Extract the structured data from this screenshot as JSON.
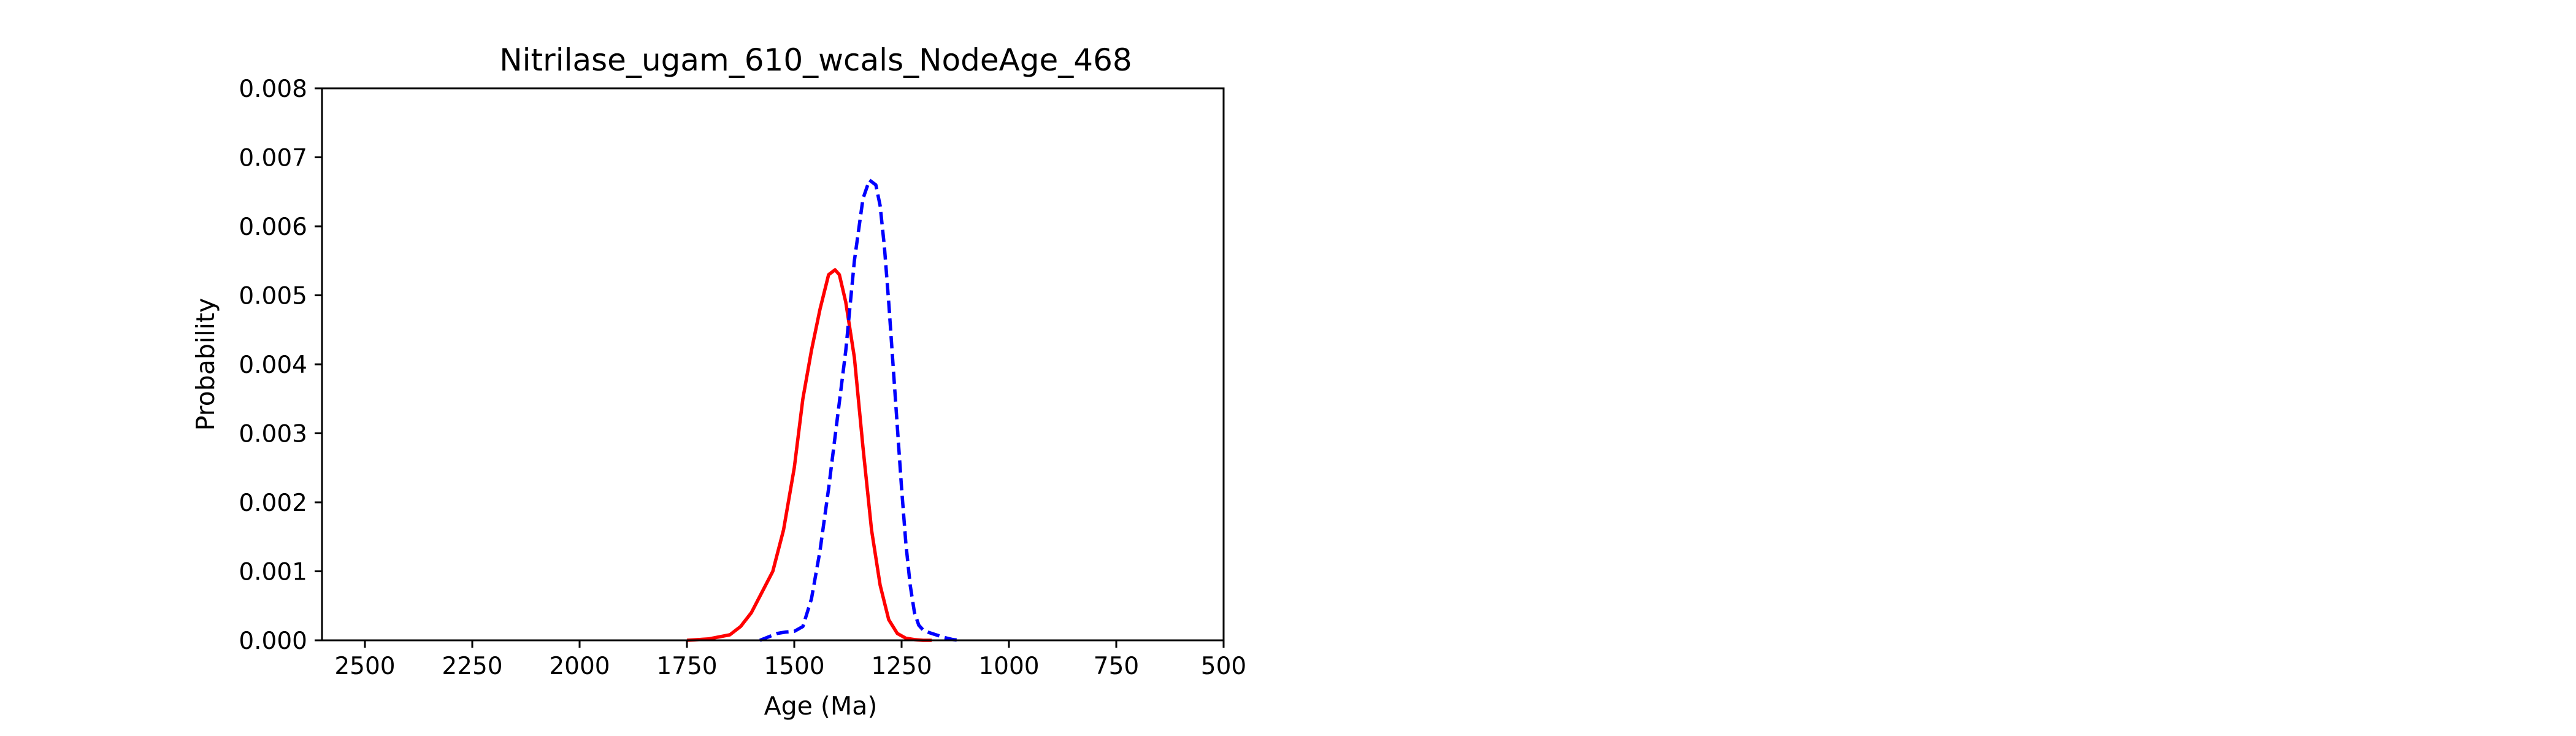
{
  "chart_data": {
    "type": "line",
    "title": "Nitrilase_ugam_610_wcals_NodeAge_468",
    "xlabel": "Age (Ma)",
    "ylabel": "Probability",
    "xlim": [
      2600,
      500
    ],
    "ylim": [
      0,
      0.008
    ],
    "x_ticks": [
      2500,
      2250,
      2000,
      1750,
      1500,
      1250,
      1000,
      750,
      500
    ],
    "x_tick_labels": [
      "2500",
      "2250",
      "2000",
      "1750",
      "1500",
      "1250",
      "1000",
      "750",
      "500"
    ],
    "y_ticks": [
      0,
      0.001,
      0.002,
      0.003,
      0.004,
      0.005,
      0.006,
      0.007,
      0.008
    ],
    "y_tick_labels": [
      "0.000",
      "0.001",
      "0.002",
      "0.003",
      "0.004",
      "0.005",
      "0.006",
      "0.007",
      "0.008"
    ],
    "x_axis_inverted": true,
    "grid": false,
    "legend": "none",
    "series": [
      {
        "color": "#ff0000",
        "style": "solid",
        "x": [
          1750,
          1700,
          1650,
          1625,
          1600,
          1575,
          1550,
          1525,
          1500,
          1480,
          1460,
          1440,
          1420,
          1405,
          1395,
          1380,
          1360,
          1340,
          1320,
          1300,
          1280,
          1260,
          1240,
          1220,
          1200,
          1180
        ],
        "y": [
          0.0,
          2e-05,
          8e-05,
          0.0002,
          0.0004,
          0.0007,
          0.001,
          0.0016,
          0.0025,
          0.0035,
          0.0042,
          0.0048,
          0.0053,
          0.00537,
          0.0053,
          0.0049,
          0.0041,
          0.0028,
          0.0016,
          0.0008,
          0.0003,
          0.0001,
          3e-05,
          1e-05,
          0.0,
          0.0
        ]
      },
      {
        "color": "#0000ff",
        "style": "dashed",
        "x": [
          1580,
          1560,
          1540,
          1520,
          1500,
          1480,
          1460,
          1440,
          1420,
          1400,
          1380,
          1360,
          1340,
          1325,
          1310,
          1300,
          1290,
          1280,
          1270,
          1260,
          1250,
          1240,
          1230,
          1220,
          1210,
          1200,
          1190,
          1170,
          1150,
          1130,
          1110
        ],
        "y": [
          0.0,
          5e-05,
          0.0001,
          0.00012,
          0.00013,
          0.0002,
          0.0006,
          0.0013,
          0.0022,
          0.0032,
          0.0042,
          0.0055,
          0.0064,
          0.00667,
          0.0066,
          0.0063,
          0.0057,
          0.0049,
          0.004,
          0.0031,
          0.0022,
          0.0014,
          0.0008,
          0.0004,
          0.00022,
          0.00015,
          0.00012,
          8e-05,
          4e-05,
          1e-05,
          0.0
        ]
      }
    ]
  }
}
